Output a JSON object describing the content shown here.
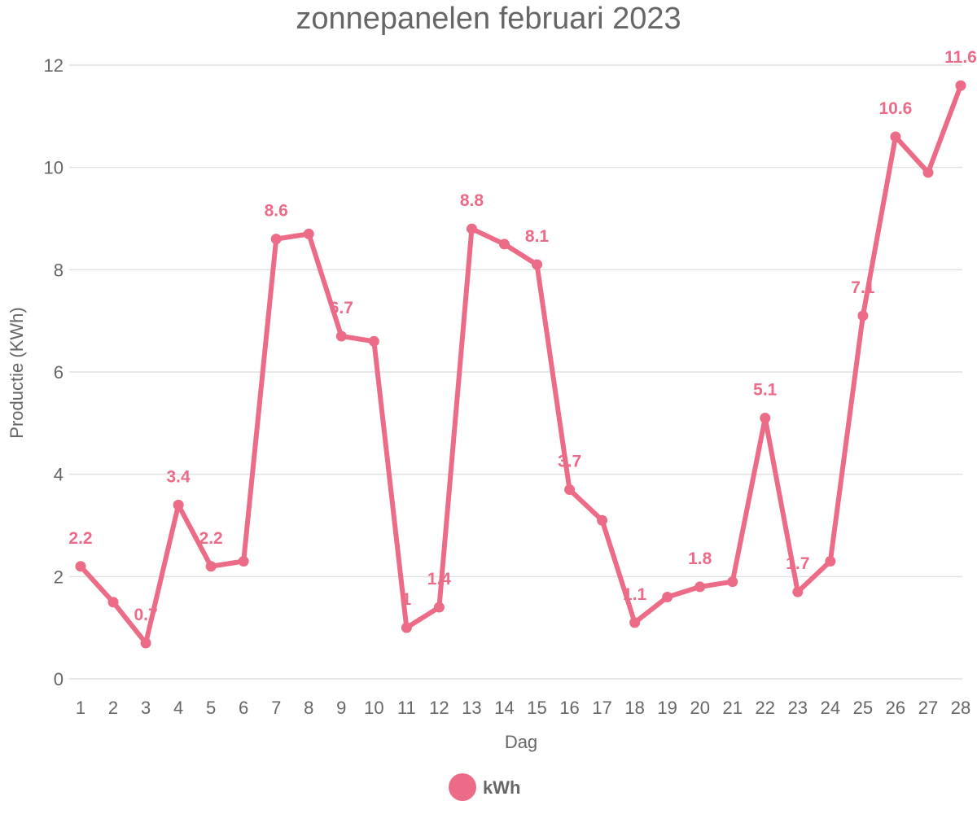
{
  "chart_data": {
    "type": "line",
    "title": "zonnepanelen februari 2023",
    "xlabel": "Dag",
    "ylabel": "Productie (KWh)",
    "ylim": [
      0,
      12
    ],
    "yticks": [
      0,
      2,
      4,
      6,
      8,
      10,
      12
    ],
    "grid": true,
    "legend_position": "bottom",
    "categories": [
      "1",
      "2",
      "3",
      "4",
      "5",
      "6",
      "7",
      "8",
      "9",
      "10",
      "11",
      "12",
      "13",
      "14",
      "15",
      "16",
      "17",
      "18",
      "19",
      "20",
      "21",
      "22",
      "23",
      "24",
      "25",
      "26",
      "27",
      "28"
    ],
    "series": [
      {
        "name": "kWh",
        "color": "#ec6b86",
        "values": [
          2.2,
          1.5,
          0.7,
          3.4,
          2.2,
          2.3,
          8.6,
          8.7,
          6.7,
          6.6,
          1,
          1.4,
          8.8,
          8.5,
          8.1,
          3.7,
          3.1,
          1.1,
          1.6,
          1.8,
          1.9,
          5.1,
          1.7,
          2.3,
          7.1,
          10.6,
          9.9,
          11.6
        ],
        "labeled_days": [
          "1",
          "3",
          "4",
          "5",
          "7",
          "9",
          "11",
          "12",
          "13",
          "15",
          "16",
          "18",
          "20",
          "22",
          "23",
          "25",
          "26",
          "28"
        ]
      }
    ]
  }
}
